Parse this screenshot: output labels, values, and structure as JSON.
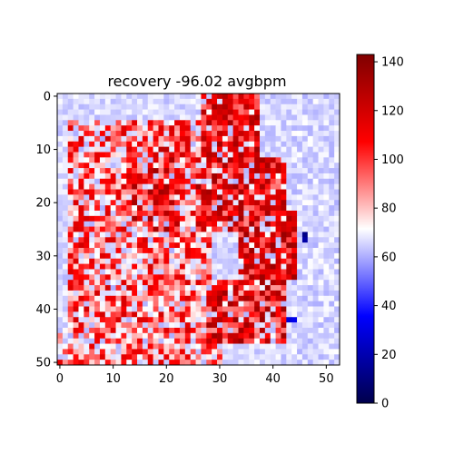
{
  "chart_data": {
    "type": "heatmap",
    "title": "recovery -96.02 avgbpm",
    "rows": 51,
    "cols": 53,
    "xlim": [
      -0.5,
      52.5
    ],
    "ylim": [
      50.5,
      -0.5
    ],
    "x_ticks": [
      0,
      10,
      20,
      30,
      40,
      50
    ],
    "y_ticks": [
      0,
      10,
      20,
      30,
      40,
      50
    ],
    "colorbar": {
      "colormap": "seismic",
      "vmin": 0,
      "vmax": 143,
      "ticks": [
        0,
        20,
        40,
        60,
        80,
        100,
        120,
        140
      ]
    },
    "grid": false,
    "baseline_value": 66,
    "regions": [
      {
        "row_range": [
          0,
          12
        ],
        "col_range": [
          27,
          37
        ],
        "mean": 112,
        "spread": 22
      },
      {
        "row_range": [
          10,
          25
        ],
        "col_range": [
          13,
          22
        ],
        "mean": 108,
        "spread": 26
      },
      {
        "row_range": [
          12,
          25
        ],
        "col_range": [
          26,
          42
        ],
        "mean": 110,
        "spread": 24
      },
      {
        "row_range": [
          22,
          35
        ],
        "col_range": [
          34,
          44
        ],
        "mean": 114,
        "spread": 22
      },
      {
        "row_range": [
          35,
          46
        ],
        "col_range": [
          28,
          42
        ],
        "mean": 110,
        "spread": 26
      },
      {
        "row_range": [
          5,
          45
        ],
        "col_range": [
          2,
          28
        ],
        "mean": 92,
        "spread": 28
      },
      {
        "row_range": [
          0,
          50
        ],
        "col_range": [
          44,
          52
        ],
        "mean": 66,
        "spread": 6
      },
      {
        "row_range": [
          44,
          50
        ],
        "col_range": [
          0,
          30
        ],
        "mean": 88,
        "spread": 28
      }
    ],
    "point_values": [
      {
        "row": 26,
        "col": 46,
        "value": 12
      },
      {
        "row": 27,
        "col": 46,
        "value": 18
      },
      {
        "row": 42,
        "col": 43,
        "value": 28
      },
      {
        "row": 42,
        "col": 44,
        "value": 32
      }
    ]
  }
}
